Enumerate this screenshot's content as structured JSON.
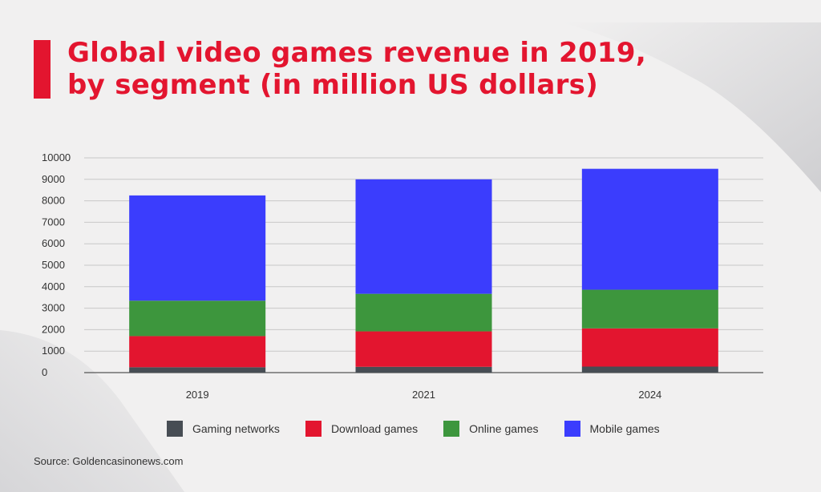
{
  "title": {
    "line1": "Global video games revenue in 2019,",
    "line2": "by segment (in million US dollars)"
  },
  "colors": {
    "accent": "#e3152f",
    "gaming_networks": "#474d54",
    "download_games": "#e3152f",
    "online_games": "#3d963d",
    "mobile_games": "#3b3dfd"
  },
  "legend": [
    {
      "label": "Gaming networks",
      "color": "#474d54"
    },
    {
      "label": "Download games",
      "color": "#e3152f"
    },
    {
      "label": "Online games",
      "color": "#3d963d"
    },
    {
      "label": "Mobile games",
      "color": "#3b3dfd"
    }
  ],
  "source": "Source: Goldencasinonews.com",
  "chart_data": {
    "type": "bar",
    "stacked": true,
    "categories": [
      "2019",
      "2021",
      "2024"
    ],
    "series": [
      {
        "name": "Gaming networks",
        "values": [
          250,
          270,
          280
        ],
        "color": "#474d54"
      },
      {
        "name": "Download games",
        "values": [
          1450,
          1650,
          1780
        ],
        "color": "#e3152f"
      },
      {
        "name": "Online games",
        "values": [
          1650,
          1750,
          1800
        ],
        "color": "#3d963d"
      },
      {
        "name": "Mobile games",
        "values": [
          4900,
          5330,
          5630
        ],
        "color": "#3b3dfd"
      }
    ],
    "yticks": [
      "0",
      "1000",
      "2000",
      "3000",
      "4000",
      "5000",
      "6000",
      "7000",
      "8000",
      "9000",
      "10000"
    ],
    "ylim": [
      0,
      10000
    ],
    "grid": true,
    "legend_position": "bottom"
  }
}
